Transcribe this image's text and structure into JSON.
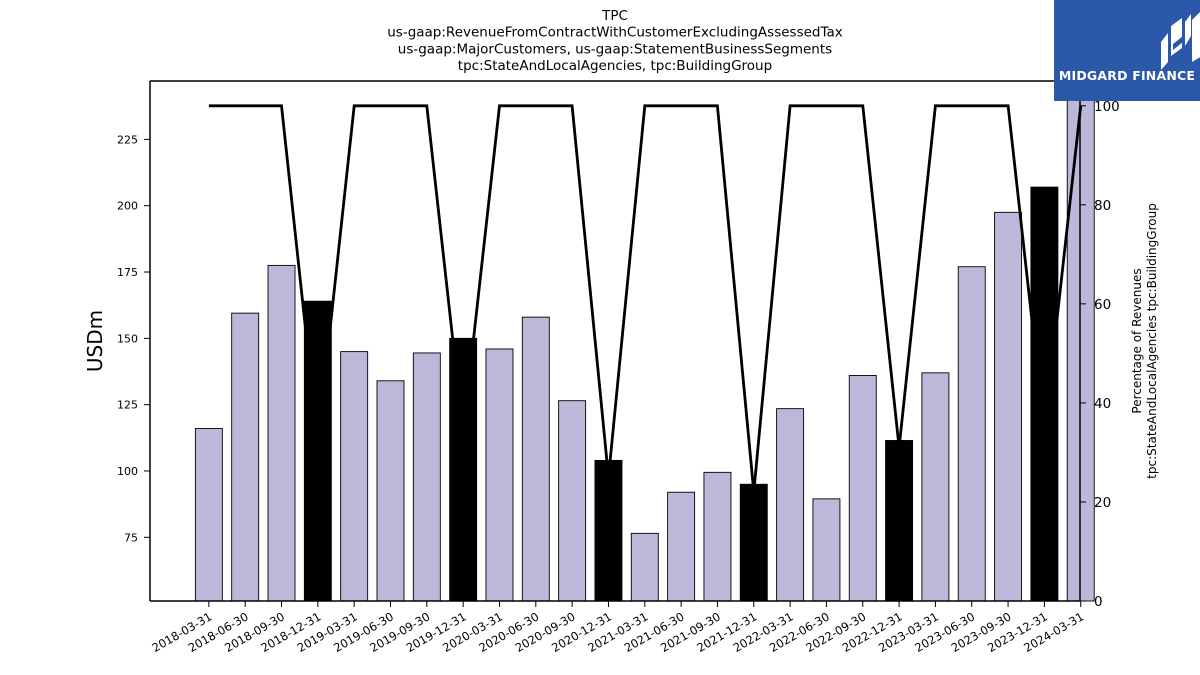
{
  "brand": {
    "name": "MIDGARD FINANCE",
    "logo_icon": "midgard-m-icon",
    "bg_color": "#2b58a8"
  },
  "chart_data": {
    "type": "bar",
    "title_lines": [
      "TPC",
      "us-gaap:RevenueFromContractWithCustomerExcludingAssessedTax",
      "us-gaap:MajorCustomers, us-gaap:StatementBusinessSegments",
      "tpc:StateAndLocalAgencies, tpc:BuildingGroup"
    ],
    "ylabel": "USDm",
    "y2label_lines": [
      "Percentage of Revenues",
      "tpc:StateAndLocalAgencies tpc:BuildingGroup"
    ],
    "ylim": [
      51,
      247
    ],
    "yticks": [
      75,
      100,
      125,
      150,
      175,
      200,
      225
    ],
    "y2lim": [
      0,
      105
    ],
    "y2ticks": [
      0,
      20,
      40,
      60,
      80,
      100
    ],
    "categories": [
      "2018-03-31",
      "2018-06-30",
      "2018-09-30",
      "2018-12-31",
      "2019-03-31",
      "2019-06-30",
      "2019-09-30",
      "2019-12-31",
      "2020-03-31",
      "2020-06-30",
      "2020-09-30",
      "2020-12-31",
      "2021-03-31",
      "2021-06-30",
      "2021-09-30",
      "2021-12-31",
      "2022-03-31",
      "2022-06-30",
      "2022-09-30",
      "2022-12-31",
      "2023-03-31",
      "2023-06-30",
      "2023-09-30",
      "2023-12-31",
      "2024-03-31"
    ],
    "series": [
      {
        "type": "bar",
        "axis": "left",
        "values": [
          116,
          159.5,
          177.5,
          164,
          145,
          134,
          144.5,
          150,
          146,
          158,
          126.5,
          104,
          76.5,
          92,
          99.5,
          95,
          123.5,
          89.5,
          136,
          111.5,
          137,
          177,
          197.5,
          207,
          247
        ],
        "highlight": [
          false,
          false,
          false,
          true,
          false,
          false,
          false,
          true,
          false,
          false,
          false,
          true,
          false,
          false,
          false,
          true,
          false,
          false,
          false,
          true,
          false,
          false,
          false,
          true,
          false
        ],
        "color": "#bcb8d9",
        "highlight_color": "#000000"
      },
      {
        "type": "line",
        "axis": "right",
        "values": [
          100,
          100,
          100,
          32,
          100,
          100,
          100,
          34,
          100,
          100,
          100,
          25,
          100,
          100,
          100,
          22,
          100,
          100,
          100,
          31,
          100,
          100,
          100,
          34,
          100
        ],
        "color": "#000000"
      }
    ],
    "grid": false,
    "legend": "none"
  }
}
